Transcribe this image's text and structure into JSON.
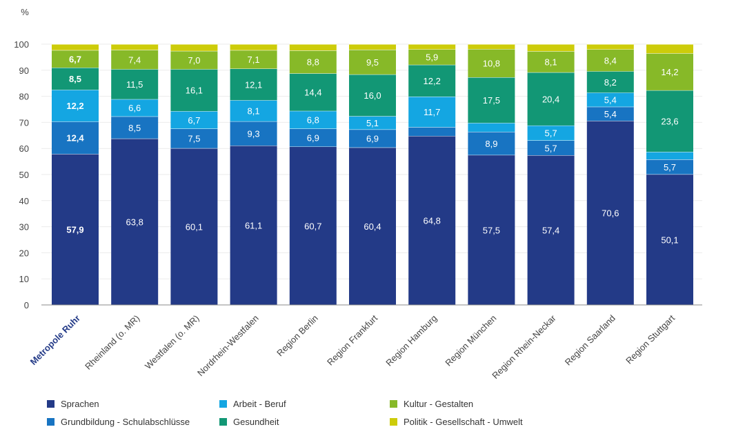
{
  "chart_data": {
    "type": "bar",
    "stacked": true,
    "unit_label": "%",
    "ylim": [
      0,
      100
    ],
    "yticks": [
      0,
      10,
      20,
      30,
      40,
      50,
      60,
      70,
      80,
      90,
      100
    ],
    "grid": true,
    "legend_placement": "bottom",
    "categories": [
      "Metropole Ruhr",
      "Rheinland (o. MR)",
      "Westfalen (o. MR)",
      "Nordrhein-Westfalen",
      "Region Berlin",
      "Region Frankfurt",
      "Region Hamburg",
      "Region München",
      "Region Rhein-Neckar",
      "Region Saarland",
      "Region Stuttgart"
    ],
    "highlight_category": "Metropole Ruhr",
    "series": [
      {
        "name": "Sprachen",
        "color": "#233a87",
        "values": [
          57.9,
          63.8,
          60.1,
          61.1,
          60.7,
          60.4,
          64.8,
          57.5,
          57.4,
          70.6,
          50.1
        ],
        "labels": [
          "57,9",
          "63,8",
          "60,1",
          "61,1",
          "60,7",
          "60,4",
          "64,8",
          "57,5",
          "57,4",
          "70,6",
          "50,1"
        ]
      },
      {
        "name": "Grundbildung - Schulabschlüsse",
        "color": "#1874c2",
        "values": [
          12.4,
          8.5,
          7.5,
          9.3,
          6.9,
          6.9,
          3.4,
          8.9,
          5.7,
          5.4,
          5.7
        ],
        "labels": [
          "12,4",
          "8,5",
          "7,5",
          "9,3",
          "6,9",
          "6,9",
          "",
          "8,9",
          "5,7",
          "5,4",
          "5,7"
        ]
      },
      {
        "name": "Arbeit - Beruf",
        "color": "#14a6e2",
        "values": [
          12.2,
          6.6,
          6.7,
          8.1,
          6.8,
          5.1,
          11.7,
          3.4,
          5.7,
          5.4,
          2.9
        ],
        "labels": [
          "12,2",
          "6,6",
          "6,7",
          "8,1",
          "6,8",
          "5,1",
          "11,7",
          "",
          "5,7",
          "5,4",
          ""
        ]
      },
      {
        "name": "Gesundheit",
        "color": "#129775",
        "values": [
          8.5,
          11.5,
          16.1,
          12.1,
          14.4,
          16.0,
          12.2,
          17.5,
          20.4,
          8.2,
          23.6
        ],
        "labels": [
          "8,5",
          "11,5",
          "16,1",
          "12,1",
          "14,4",
          "16,0",
          "12,2",
          "17,5",
          "20,4",
          "8,2",
          "23,6"
        ]
      },
      {
        "name": "Kultur - Gestalten",
        "color": "#87b928",
        "values": [
          6.7,
          7.4,
          7.0,
          7.1,
          8.8,
          9.5,
          5.9,
          10.8,
          8.1,
          8.4,
          14.2
        ],
        "labels": [
          "6,7",
          "7,4",
          "7,0",
          "7,1",
          "8,8",
          "9,5",
          "5,9",
          "10,8",
          "8,1",
          "8,4",
          "14,2"
        ]
      },
      {
        "name": "Politik - Gesellschaft - Umwelt",
        "color": "#cdcc0a",
        "values": [
          2.3,
          2.2,
          2.6,
          2.3,
          2.4,
          2.1,
          2.0,
          1.9,
          2.7,
          2.0,
          3.5
        ],
        "labels": [
          "",
          "",
          "",
          "",
          "",
          "",
          "",
          "",
          "",
          "",
          ""
        ]
      }
    ]
  }
}
